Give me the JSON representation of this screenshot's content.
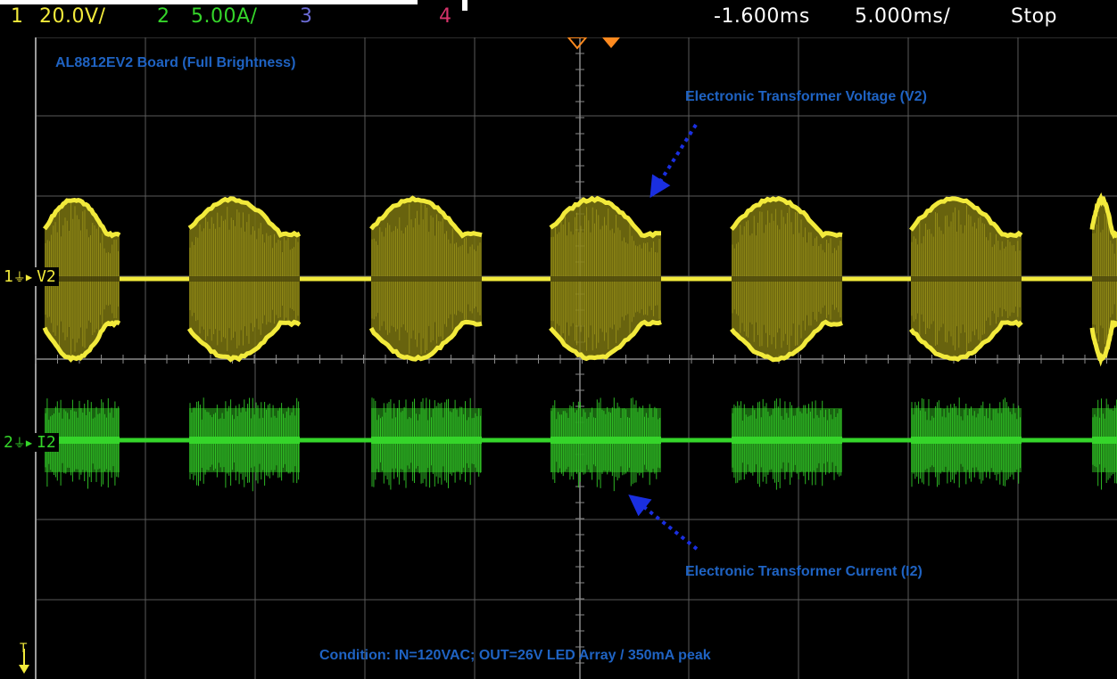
{
  "header": {
    "ch1_num": "1",
    "ch1_scale": "20.0V/",
    "ch2_num": "2",
    "ch2_scale": "5.00A/",
    "ch3_num": "3",
    "ch4_num": "4",
    "time_offset": "-1.600ms",
    "time_scale": "5.000ms/",
    "run_state": "Stop"
  },
  "annotations": {
    "title": "AL8812EV2 Board (Full Brightness)",
    "voltage_label": "Electronic Transformer Voltage (V2)",
    "current_label": "Electronic Transformer Current (I2)",
    "condition": "Condition: IN=120VAC; OUT=26V LED Array / 350mA peak"
  },
  "channels": {
    "v2": {
      "num": "1",
      "label": "V2",
      "color": "#f0e83a"
    },
    "i2": {
      "num": "2",
      "label": "I2",
      "color": "#3ed62a"
    }
  },
  "trigger_marker": "T",
  "colors": {
    "grid": "#5a5a5a",
    "ch1": "#f2ea3b",
    "ch2": "#35d52a",
    "ch3": "#6b6bd6",
    "ch4": "#d6336b",
    "annotation": "#1f63c3",
    "arrow": "#1a2fe0",
    "trigger": "#ff8a1f"
  }
}
